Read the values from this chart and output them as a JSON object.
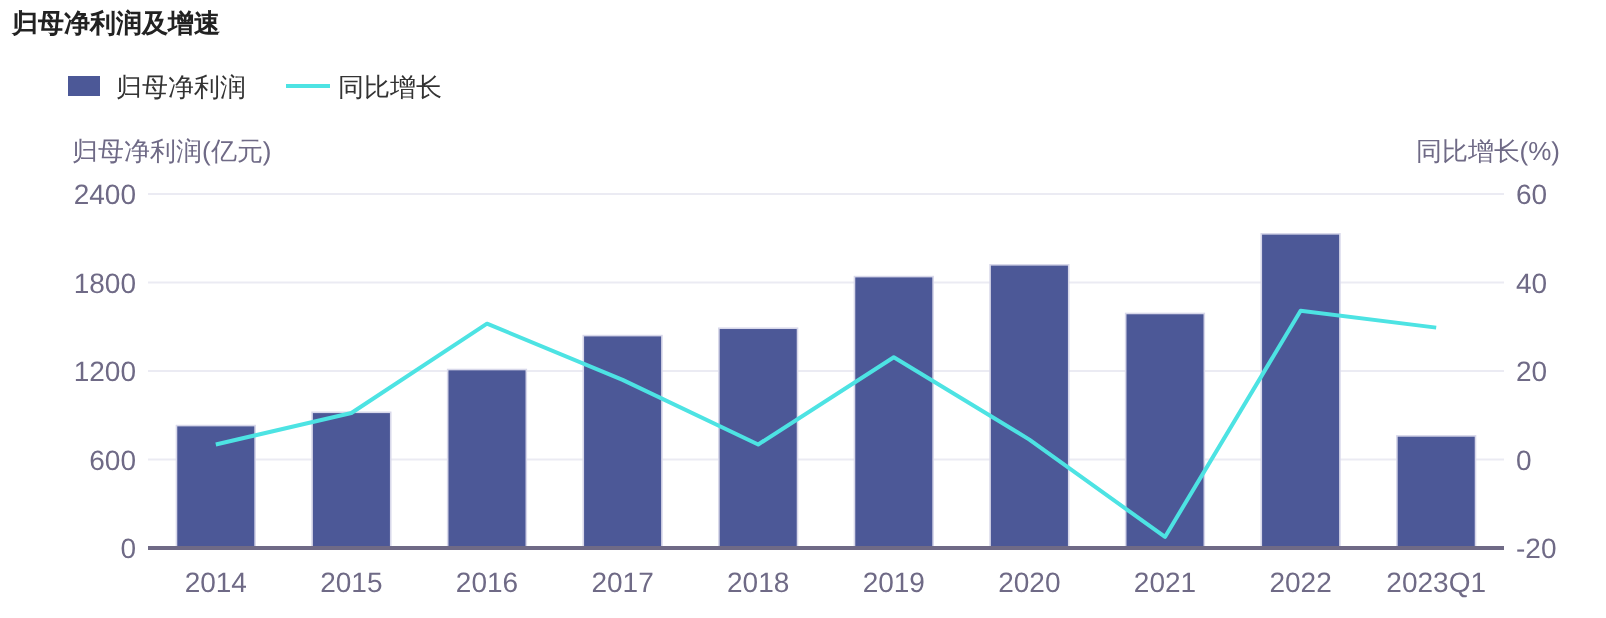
{
  "chart_data": {
    "type": "bar",
    "title": "归母净利润及增速",
    "ylabel": "归母净利润(亿元)",
    "y2label": "同比增长(%)",
    "categories": [
      "2014",
      "2015",
      "2016",
      "2017",
      "2018",
      "2019",
      "2020",
      "2021",
      "2022",
      "2023Q1"
    ],
    "series": [
      {
        "name": "归母净利润",
        "color": "#4c5897",
        "values": [
          830,
          920,
          1210,
          1440,
          1490,
          1840,
          1920,
          1590,
          2130,
          760
        ]
      },
      {
        "name": "同比增长",
        "type": "line",
        "axis": "y2",
        "color": "#4de3e3",
        "marker": "none",
        "values": [
          3.4,
          10.5,
          30.7,
          18.0,
          3.4,
          23.1,
          4.5,
          -17.5,
          33.6,
          29.8
        ]
      }
    ],
    "ylim": [
      0,
      2400
    ],
    "yticks": [
      0,
      600,
      1200,
      1800,
      2400
    ],
    "y2lim": [
      -20,
      60
    ],
    "y2ticks": [
      -20,
      0,
      20,
      40,
      60
    ],
    "grid": "y",
    "legend": "top left"
  }
}
